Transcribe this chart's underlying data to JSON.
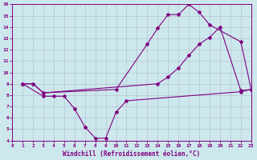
{
  "line1_x": [
    1,
    2,
    3,
    10,
    13,
    14,
    15,
    16,
    17,
    18,
    19,
    22,
    23
  ],
  "line1_y": [
    9.0,
    9.0,
    8.2,
    8.5,
    12.5,
    13.9,
    15.1,
    15.1,
    16.0,
    15.3,
    14.2,
    12.7,
    8.5
  ],
  "line2_x": [
    1,
    3,
    4,
    5,
    6,
    7,
    8,
    9,
    10,
    11,
    22,
    23
  ],
  "line2_y": [
    9.0,
    7.9,
    7.9,
    7.9,
    6.8,
    5.2,
    4.2,
    4.2,
    6.5,
    7.5,
    8.3,
    8.5
  ],
  "line3_x": [
    1,
    2,
    3,
    14,
    15,
    16,
    17,
    18,
    19,
    20,
    22,
    23
  ],
  "line3_y": [
    9.0,
    9.0,
    8.2,
    9.0,
    9.6,
    10.4,
    11.5,
    12.5,
    13.1,
    14.0,
    8.4,
    8.5
  ],
  "line_color": "#800080",
  "bg_color": "#cde8ed",
  "grid_color": "#b0b8cc",
  "xlabel": "Windchill (Refroidissement éolien,°C)",
  "ylim": [
    4,
    16
  ],
  "xlim": [
    0,
    23
  ],
  "yticks": [
    4,
    5,
    6,
    7,
    8,
    9,
    10,
    11,
    12,
    13,
    14,
    15,
    16
  ],
  "xticks": [
    0,
    1,
    2,
    3,
    4,
    5,
    6,
    7,
    8,
    9,
    10,
    11,
    12,
    13,
    14,
    15,
    16,
    17,
    18,
    19,
    20,
    21,
    22,
    23
  ]
}
